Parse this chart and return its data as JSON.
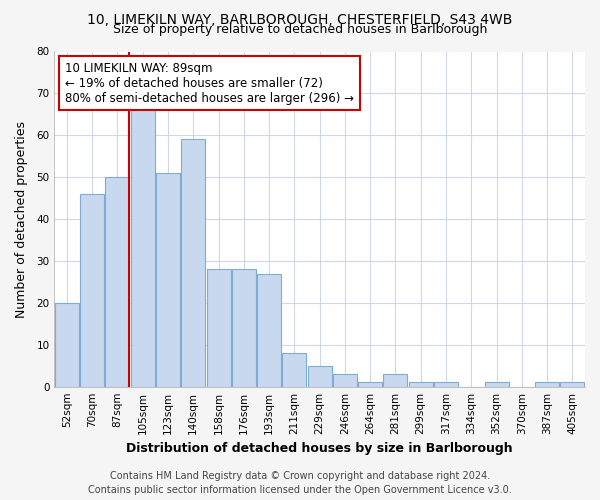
{
  "title_line1": "10, LIMEKILN WAY, BARLBOROUGH, CHESTERFIELD, S43 4WB",
  "title_line2": "Size of property relative to detached houses in Barlborough",
  "xlabel": "Distribution of detached houses by size in Barlborough",
  "ylabel": "Number of detached properties",
  "categories": [
    "52sqm",
    "70sqm",
    "87sqm",
    "105sqm",
    "123sqm",
    "140sqm",
    "158sqm",
    "176sqm",
    "193sqm",
    "211sqm",
    "229sqm",
    "246sqm",
    "264sqm",
    "281sqm",
    "299sqm",
    "317sqm",
    "334sqm",
    "352sqm",
    "370sqm",
    "387sqm",
    "405sqm"
  ],
  "values": [
    20,
    46,
    50,
    66,
    51,
    59,
    28,
    28,
    27,
    8,
    5,
    3,
    1,
    3,
    1,
    1,
    0,
    1,
    0,
    1,
    1
  ],
  "bar_color": "#c8d9ef",
  "bar_edge_color": "#7eadd4",
  "vline_x_index": 2,
  "vline_color": "#cc0000",
  "annotation_text": "10 LIMEKILN WAY: 89sqm\n← 19% of detached houses are smaller (72)\n80% of semi-detached houses are larger (296) →",
  "annotation_box_facecolor": "#ffffff",
  "annotation_box_edgecolor": "#cc0000",
  "ylim": [
    0,
    80
  ],
  "yticks": [
    0,
    10,
    20,
    30,
    40,
    50,
    60,
    70,
    80
  ],
  "plot_bg_color": "#ffffff",
  "fig_bg_color": "#f5f5f5",
  "grid_color": "#d0d8e8",
  "footer_line1": "Contains HM Land Registry data © Crown copyright and database right 2024.",
  "footer_line2": "Contains public sector information licensed under the Open Government Licence v3.0.",
  "title_fontsize": 10,
  "subtitle_fontsize": 9,
  "axis_label_fontsize": 9,
  "ylabel_fontsize": 9,
  "tick_fontsize": 7.5,
  "annotation_fontsize": 8.5,
  "footer_fontsize": 7
}
